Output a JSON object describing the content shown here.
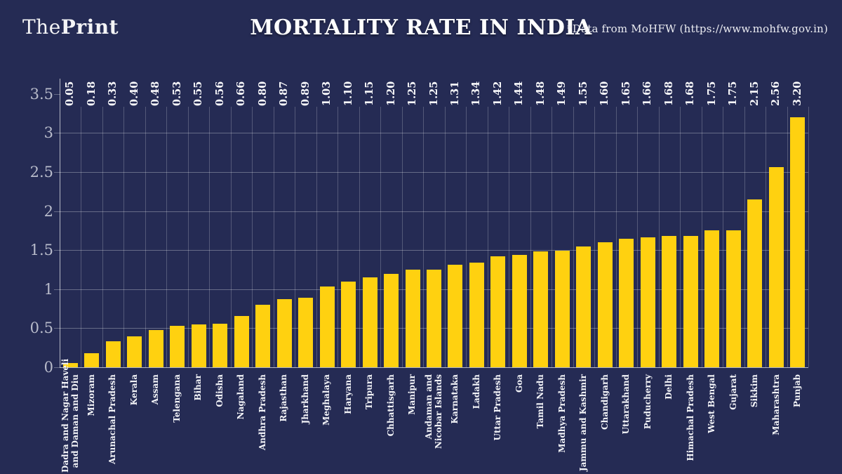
{
  "page": {
    "logo_the": "The",
    "logo_print": "Print",
    "title": "MORTALITY RATE IN INDIA",
    "source_note": "*Data from MoHFW (https://www.mohfw.gov.in)"
  },
  "colors": {
    "background": "#252B54",
    "bar": "#FFD110",
    "gridline": "rgba(255,255,255,0.30)",
    "vgridline": "rgba(255,255,255,0.22)",
    "axis_line": "rgba(255,255,255,0.65)",
    "ytick_text": "#B9BCCB",
    "label_text": "#F8F8FA"
  },
  "chart_data": {
    "type": "bar",
    "title": "MORTALITY RATE IN INDIA",
    "xlabel": "",
    "ylabel": "",
    "ylim": [
      0,
      3.5
    ],
    "yticks": [
      3.5,
      3,
      2.5,
      2,
      1.5,
      1,
      0.5,
      0
    ],
    "ytick_labels": [
      "3.5",
      "3",
      "2.5",
      "2",
      "1.5",
      "1",
      "0.5",
      "0"
    ],
    "grid": true,
    "legend": false,
    "bar_color": "#FFD110",
    "categories": [
      "Dadra and Nagar Haveli\nand Daman and Diu",
      "Mizoram",
      "Arunachal Pradesh",
      "Kerala",
      "Assam",
      "Telengana",
      "Bihar",
      "Odisha",
      "Nagaland",
      "Andhra Pradesh",
      "Rajasthan",
      "Jharkhand",
      "Meghalaya",
      "Haryana",
      "Tripura",
      "Chhattisgarh",
      "Manipur",
      "Andaman and\nNicobar Islands",
      "Karnataka",
      "Ladakh",
      "Uttar Pradesh",
      "Goa",
      "Tamil Nadu",
      "Madhya Pradesh",
      "Jammu and Kashmir",
      "Chandigarh",
      "Uttarakhand",
      "Puducherry",
      "Delhi",
      "Himachal Pradesh",
      "West Bengal",
      "Gujarat",
      "Sikkim",
      "Maharashtra",
      "Punjab"
    ],
    "values": [
      0.05,
      0.18,
      0.33,
      0.4,
      0.48,
      0.53,
      0.55,
      0.56,
      0.66,
      0.8,
      0.87,
      0.89,
      1.03,
      1.1,
      1.15,
      1.2,
      1.25,
      1.25,
      1.31,
      1.34,
      1.42,
      1.44,
      1.48,
      1.49,
      1.55,
      1.6,
      1.65,
      1.66,
      1.68,
      1.68,
      1.75,
      1.75,
      2.15,
      2.56,
      3.2
    ],
    "value_labels": [
      "0.05",
      "0.18",
      "0.33",
      "0.40",
      "0.48",
      "0.53",
      "0.55",
      "0.56",
      "0.66",
      "0.80",
      "0.87",
      "0.89",
      "1.03",
      "1.10",
      "1.15",
      "1.20",
      "1.25",
      "1.25",
      "1.31",
      "1.34",
      "1.42",
      "1.44",
      "1.48",
      "1.49",
      "1.55",
      "1.60",
      "1.65",
      "1.66",
      "1.68",
      "1.68",
      "1.75",
      "1.75",
      "2.15",
      "2.56",
      "3.20"
    ]
  }
}
